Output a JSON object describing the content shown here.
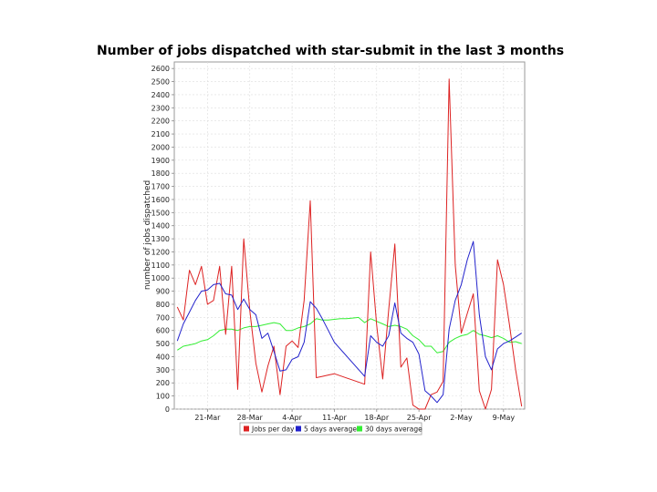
{
  "chart_data": {
    "type": "line",
    "title": "Number of jobs dispatched with star-submit in the last 3 months",
    "ylabel": "number of jobs dispatched",
    "xlabel": "",
    "ylim": [
      0,
      2650
    ],
    "y_ticks": [
      0,
      100,
      200,
      300,
      400,
      500,
      600,
      700,
      800,
      900,
      1000,
      1100,
      1200,
      1300,
      1400,
      1500,
      1600,
      1700,
      1800,
      1900,
      2000,
      2100,
      2200,
      2300,
      2400,
      2500,
      2600
    ],
    "x_tick_labels": [
      "21-Mar",
      "28-Mar",
      "4-Apr",
      "11-Apr",
      "18-Apr",
      "25-Apr",
      "2-May",
      "9-May"
    ],
    "x_tick_days": [
      21,
      28,
      35,
      42,
      49,
      56,
      63,
      70
    ],
    "xlim_days": [
      15.5,
      73.5
    ],
    "x_unit_note": "days counted from 1-Mar",
    "grid": true,
    "legend_position": "bottom-center",
    "series": [
      {
        "name": "Jobs per day",
        "color": "#dd2222",
        "x": [
          16,
          17,
          18,
          19,
          20,
          21,
          22,
          23,
          24,
          25,
          26,
          27,
          28,
          29,
          30,
          31,
          32,
          33,
          34,
          35,
          36,
          37,
          38,
          39,
          40,
          41,
          42,
          47,
          48,
          49,
          50,
          51,
          52,
          53,
          54,
          55,
          56,
          57,
          58,
          59,
          60,
          61,
          62,
          63,
          64,
          65,
          66,
          67,
          68,
          69,
          70,
          71,
          72,
          73
        ],
        "values": [
          780,
          680,
          1060,
          950,
          1090,
          800,
          830,
          1090,
          570,
          1090,
          150,
          1300,
          750,
          350,
          130,
          330,
          480,
          110,
          480,
          520,
          470,
          830,
          1590,
          240,
          250,
          260,
          270,
          190,
          1200,
          640,
          230,
          760,
          1260,
          320,
          390,
          30,
          0,
          0,
          110,
          130,
          210,
          2520,
          1100,
          580,
          730,
          880,
          140,
          0,
          150,
          1140,
          950,
          640,
          300,
          20
        ]
      },
      {
        "name": "5 days average",
        "color": "#2222cc",
        "x": [
          16,
          17,
          18,
          19,
          20,
          21,
          22,
          23,
          24,
          25,
          26,
          27,
          28,
          29,
          30,
          31,
          32,
          33,
          34,
          35,
          36,
          37,
          38,
          39,
          40,
          41,
          42,
          47,
          48,
          49,
          50,
          51,
          52,
          53,
          54,
          55,
          56,
          57,
          58,
          59,
          60,
          61,
          62,
          63,
          64,
          65,
          66,
          67,
          68,
          69,
          70,
          71,
          72,
          73
        ],
        "values": [
          520,
          650,
          740,
          830,
          900,
          910,
          950,
          960,
          880,
          870,
          760,
          840,
          760,
          720,
          540,
          580,
          440,
          290,
          300,
          380,
          400,
          510,
          820,
          770,
          690,
          600,
          510,
          250,
          560,
          510,
          480,
          560,
          810,
          580,
          540,
          510,
          420,
          140,
          100,
          50,
          110,
          610,
          830,
          950,
          1140,
          1280,
          720,
          400,
          300,
          460,
          500,
          520,
          550,
          580
        ]
      },
      {
        "name": "30 days average",
        "color": "#33ee33",
        "x": [
          16,
          17,
          18,
          19,
          20,
          21,
          22,
          23,
          24,
          25,
          26,
          27,
          28,
          29,
          30,
          31,
          32,
          33,
          34,
          35,
          36,
          37,
          38,
          39,
          40,
          41,
          42,
          43,
          44,
          45,
          46,
          47,
          48,
          49,
          50,
          51,
          52,
          53,
          54,
          55,
          56,
          57,
          58,
          59,
          60,
          61,
          62,
          63,
          64,
          65,
          66,
          67,
          68,
          69,
          70,
          71,
          72,
          73
        ],
        "values": [
          450,
          480,
          490,
          500,
          520,
          530,
          560,
          600,
          610,
          610,
          600,
          620,
          630,
          630,
          640,
          650,
          660,
          650,
          600,
          600,
          620,
          630,
          650,
          690,
          680,
          680,
          685,
          690,
          690,
          695,
          700,
          660,
          690,
          670,
          650,
          630,
          640,
          630,
          610,
          560,
          530,
          480,
          480,
          430,
          440,
          510,
          540,
          560,
          570,
          600,
          570,
          560,
          545,
          560,
          540,
          510,
          515,
          500
        ]
      }
    ]
  }
}
